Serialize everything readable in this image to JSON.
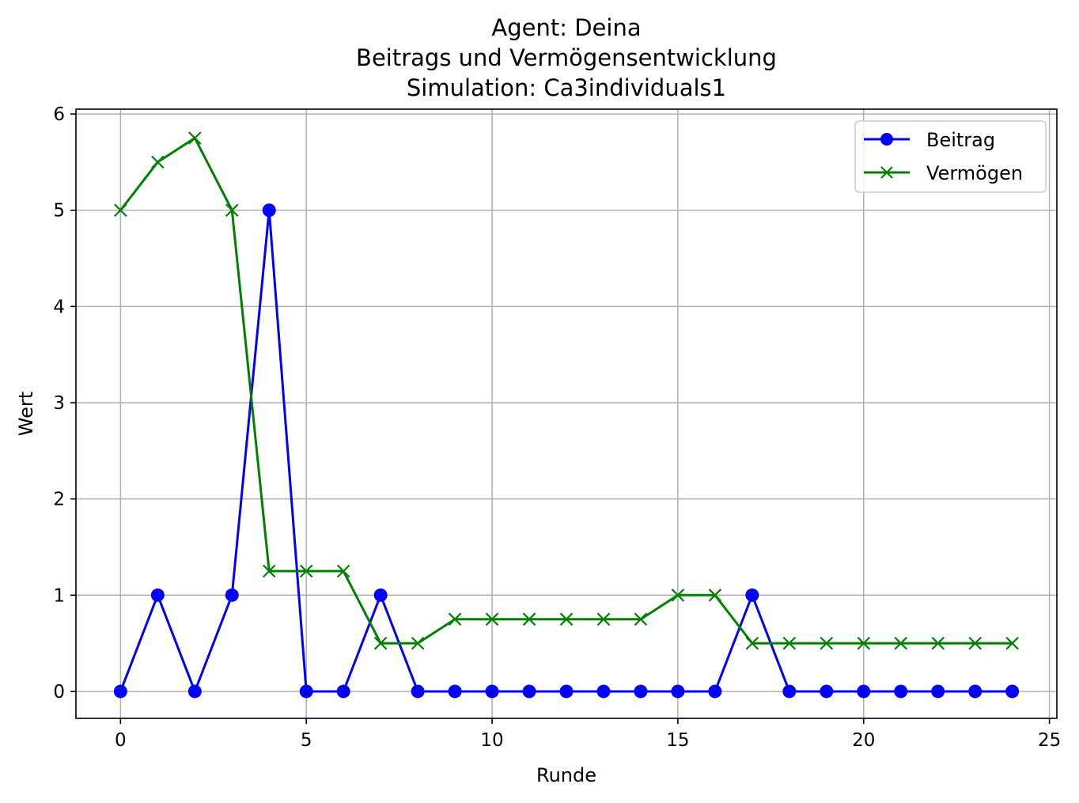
{
  "chart_data": {
    "type": "line",
    "title_lines": [
      "Agent: Deina",
      "Beitrags und Vermögensentwicklung",
      "Simulation: Ca3individuals1"
    ],
    "xlabel": "Runde",
    "ylabel": "Wert",
    "xlim": [
      -1.2,
      25.2
    ],
    "ylim": [
      -0.28,
      6.05
    ],
    "x_ticks": [
      0,
      5,
      10,
      15,
      20,
      25
    ],
    "y_ticks": [
      0,
      1,
      2,
      3,
      4,
      5,
      6
    ],
    "x_tick_labels": [
      "0",
      "5",
      "10",
      "15",
      "20",
      "25"
    ],
    "y_tick_labels": [
      "0",
      "1",
      "2",
      "3",
      "4",
      "5",
      "6"
    ],
    "grid": true,
    "legend_position": "top-right",
    "x": [
      0,
      1,
      2,
      3,
      4,
      5,
      6,
      7,
      8,
      9,
      10,
      11,
      12,
      13,
      14,
      15,
      16,
      17,
      18,
      19,
      20,
      21,
      22,
      23,
      24
    ],
    "series": [
      {
        "name": "Beitrag",
        "color": "#0000ff",
        "marker": "circle",
        "values": [
          0,
          1,
          0,
          1,
          5,
          0,
          0,
          1,
          0,
          0,
          0,
          0,
          0,
          0,
          0,
          0,
          0,
          1,
          0,
          0,
          0,
          0,
          0,
          0,
          0
        ]
      },
      {
        "name": "Vermögen",
        "color": "#008000",
        "marker": "x",
        "values": [
          5,
          5.5,
          5.75,
          5,
          1.25,
          1.25,
          1.25,
          0.5,
          0.5,
          0.75,
          0.75,
          0.75,
          0.75,
          0.75,
          0.75,
          1,
          1,
          0.5,
          0.5,
          0.5,
          0.5,
          0.5,
          0.5,
          0.5,
          0.5
        ]
      }
    ]
  }
}
